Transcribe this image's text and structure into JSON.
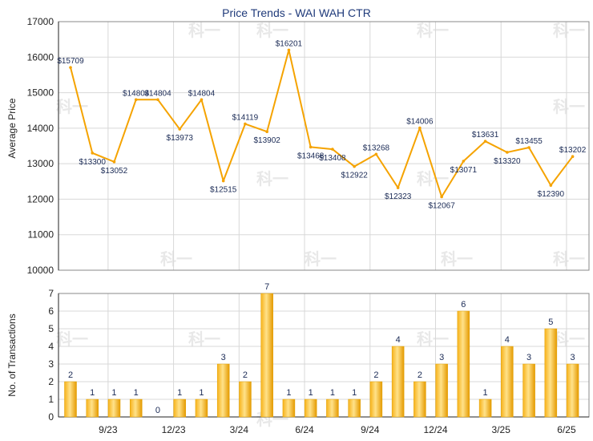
{
  "chart_data": [
    {
      "type": "line",
      "title": "Price Trends - WAI WAH CTR",
      "ylabel": "Average Price",
      "ylim": [
        10000,
        17000
      ],
      "yticks": [
        "10000",
        "11000",
        "12000",
        "13000",
        "14000",
        "15000",
        "16000",
        "17000"
      ],
      "grid": true,
      "color": "#f5a300",
      "series": [
        {
          "values": [
            15709,
            13300,
            13052,
            14804,
            14804,
            13973,
            14804,
            12515,
            14119,
            13902,
            16201,
            13468,
            13408,
            12922,
            13268,
            12323,
            14006,
            12067,
            13071,
            13631,
            13320,
            13455,
            12390,
            13202
          ],
          "labels": [
            "$15709",
            "$13300",
            "$13052",
            "$14804",
            "$14804",
            "$13973",
            "$14804",
            "$12515",
            "$14119",
            "$13902",
            "$16201",
            "$13468",
            "$13408",
            "$12922",
            "$13268",
            "$12323",
            "$14006",
            "$12067",
            "$13071",
            "$13631",
            "$13320",
            "$13455",
            "$12390",
            "$13202"
          ]
        }
      ]
    },
    {
      "type": "bar",
      "ylabel": "No. of Transactions",
      "ylim": [
        0,
        7
      ],
      "yticks": [
        "0",
        "1",
        "2",
        "3",
        "4",
        "5",
        "6",
        "7"
      ],
      "grid": true,
      "color": "#f5a300",
      "xticks": [
        "9/23",
        "12/23",
        "3/24",
        "6/24",
        "9/24",
        "12/24",
        "3/25",
        "6/25"
      ],
      "values": [
        2,
        1,
        1,
        1,
        0,
        1,
        1,
        3,
        2,
        7,
        1,
        1,
        1,
        1,
        2,
        4,
        2,
        3,
        6,
        1,
        4,
        3,
        5,
        3
      ]
    }
  ],
  "watermark": "科一"
}
